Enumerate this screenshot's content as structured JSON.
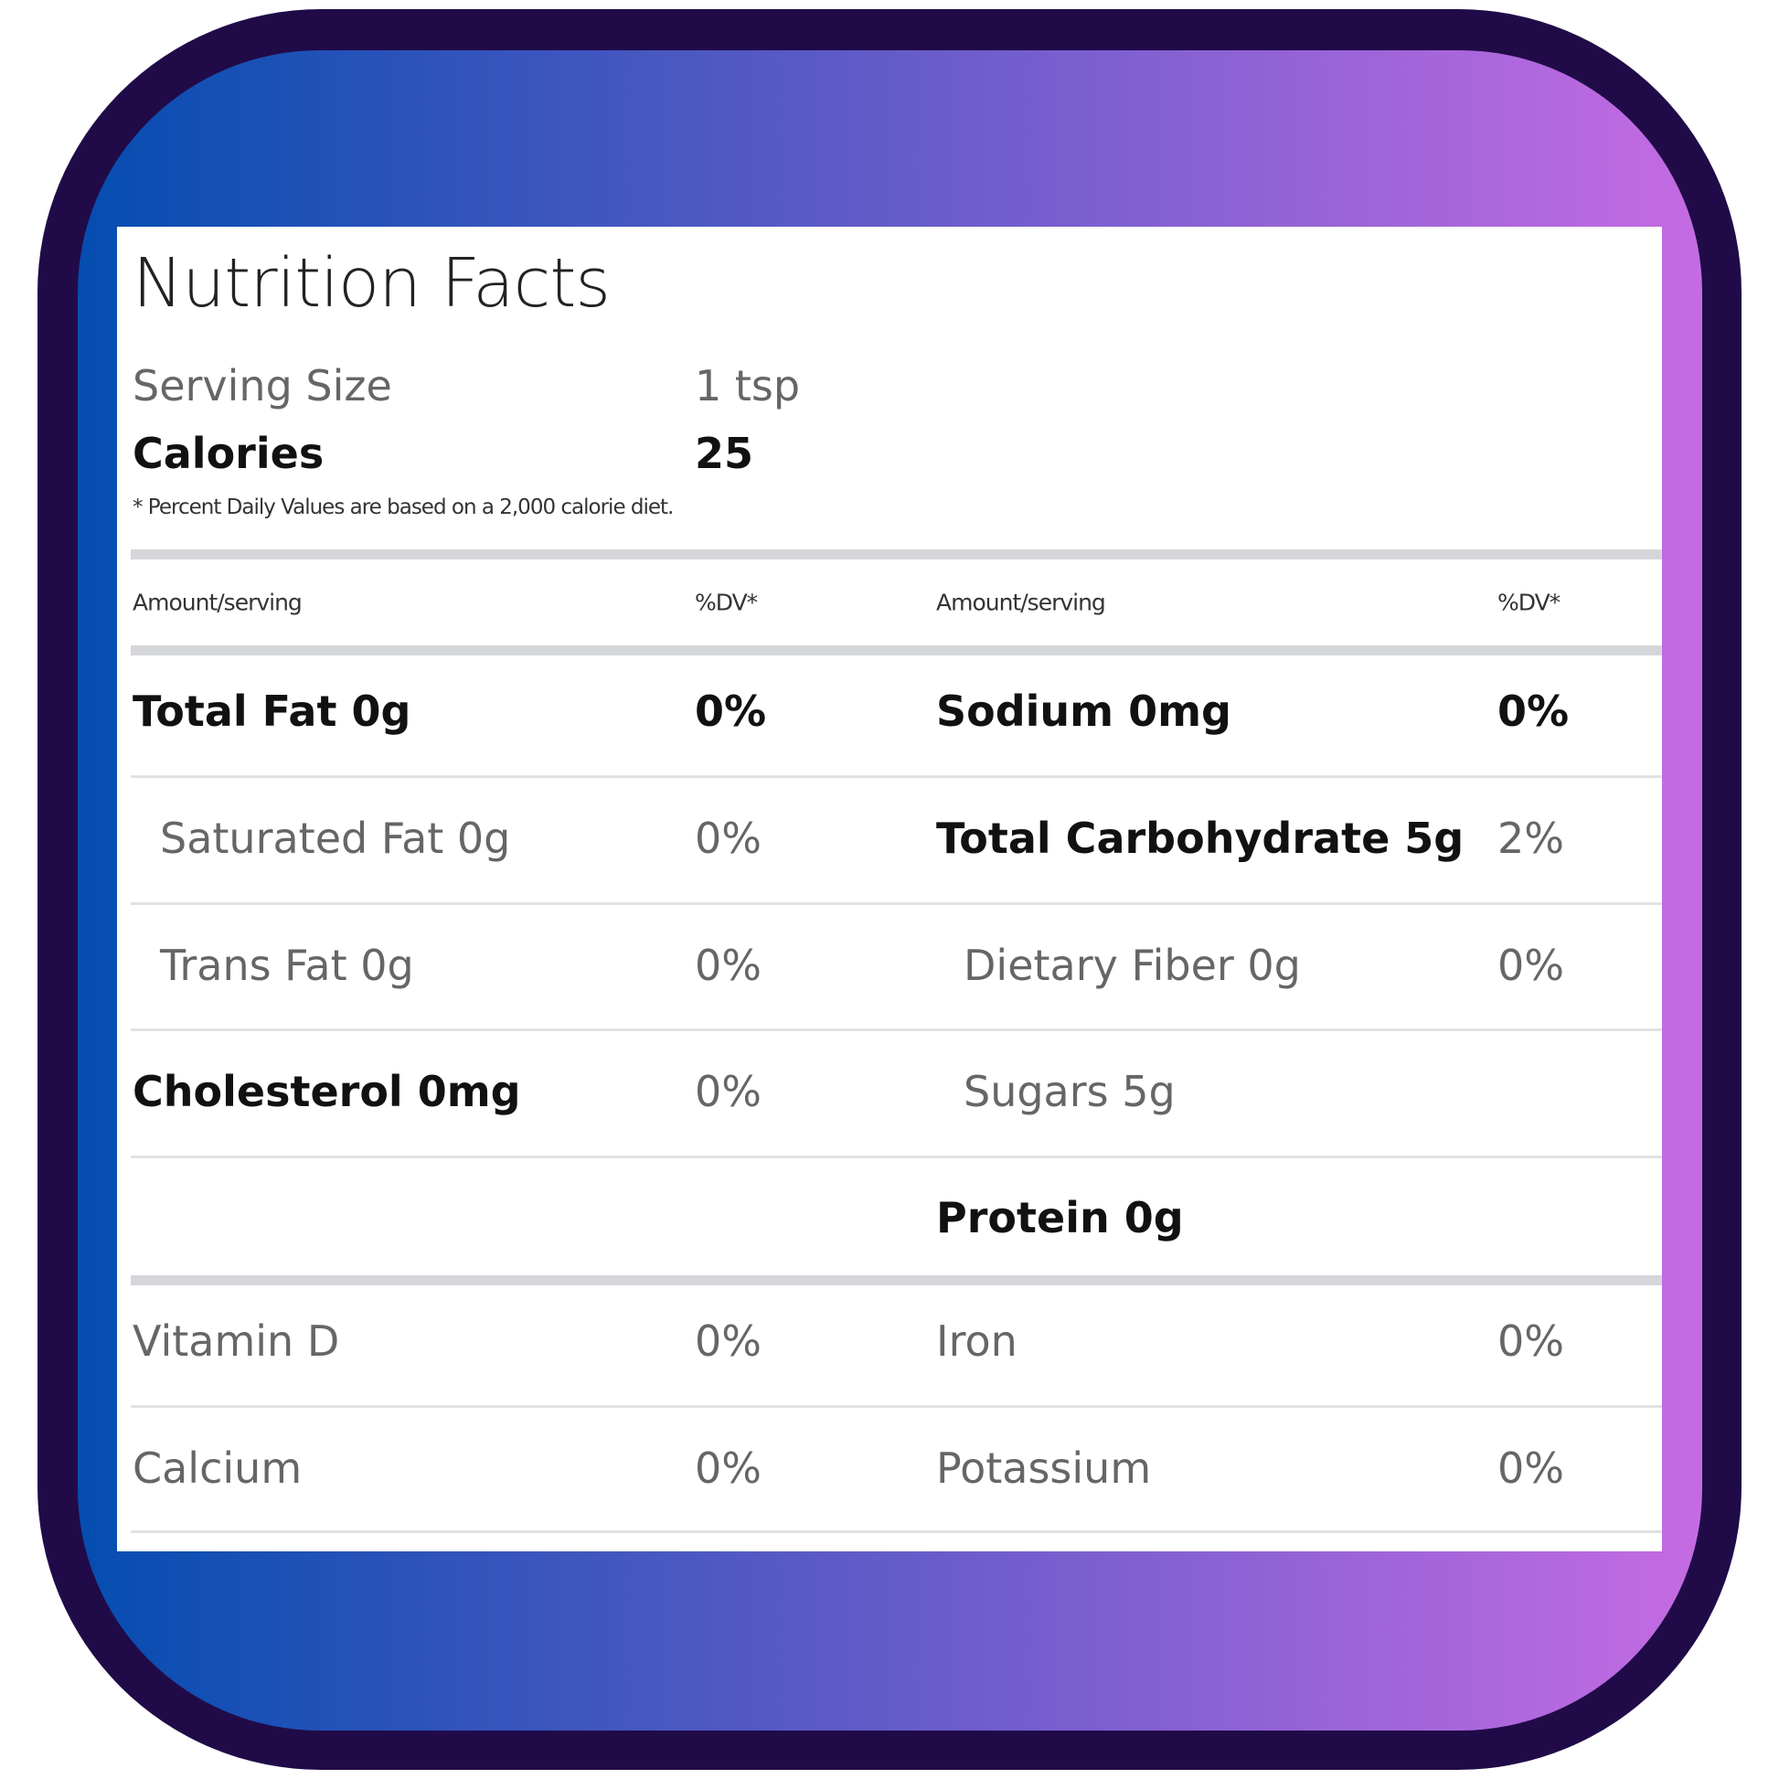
{
  "title": "Nutrition Facts",
  "serving_size": {
    "label": "Serving Size",
    "value": "1 tsp"
  },
  "calories": {
    "label": "Calories",
    "value": "25"
  },
  "footnote": "* Percent Daily Values are based on a 2,000 calorie diet.",
  "header": {
    "amount": "Amount/serving",
    "dv": "%DV*"
  },
  "left_rows": [
    {
      "label": "Total Fat 0g",
      "dv": "0%"
    },
    {
      "label": "Saturated Fat 0g",
      "dv": "0%"
    },
    {
      "label": "Trans Fat 0g",
      "dv": "0%"
    },
    {
      "label": "Cholesterol 0mg",
      "dv": "0%"
    }
  ],
  "right_rows": [
    {
      "label": "Sodium 0mg",
      "dv": "0%"
    },
    {
      "label": "Total Carbohydrate 5g",
      "dv": "2%"
    },
    {
      "label": "Dietary Fiber 0g",
      "dv": "0%"
    },
    {
      "label": "Sugars 5g",
      "dv": ""
    },
    {
      "label": "Protein 0g",
      "dv": ""
    }
  ],
  "vitamins": [
    {
      "label": "Vitamin D",
      "dv": "0%"
    },
    {
      "label": "Iron",
      "dv": "0%"
    },
    {
      "label": "Calcium",
      "dv": "0%"
    },
    {
      "label": "Potassium",
      "dv": "0%"
    }
  ],
  "colors": {
    "frame": "#200b48",
    "gradient_start": "#054db0",
    "gradient_end": "#c56be3"
  }
}
